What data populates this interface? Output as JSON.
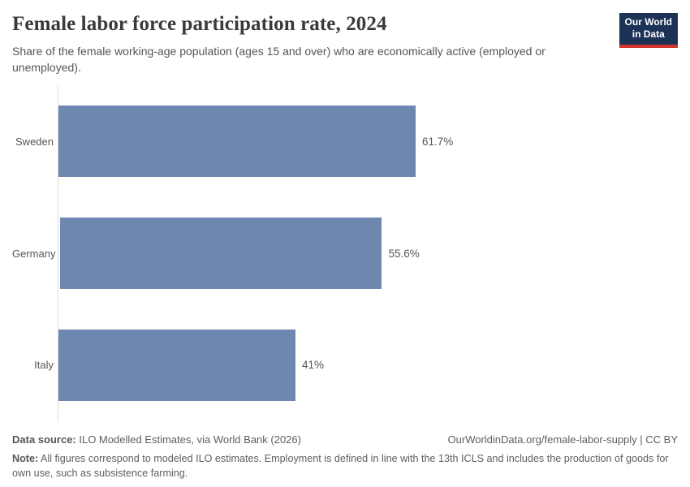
{
  "header": {
    "title": "Female labor force participation rate, 2024",
    "subtitle": "Share of the female working-age population (ages 15 and over) who are economically active (employed or unemployed).",
    "logo": {
      "line1": "Our World",
      "line2": "in Data",
      "bg_color": "#1c3256",
      "accent_color": "#d0342c"
    }
  },
  "chart_data": {
    "type": "bar",
    "orientation": "horizontal",
    "title": "Female labor force participation rate, 2024",
    "categories": [
      "Sweden",
      "Germany",
      "Italy"
    ],
    "values": [
      61.7,
      55.6,
      41
    ],
    "value_labels": [
      "61.7%",
      "55.6%",
      "41%"
    ],
    "unit": "%",
    "xlabel": "",
    "ylabel": "",
    "xlim": [
      0,
      62
    ],
    "grid": false,
    "legend": false,
    "bar_color": "#6e87af",
    "axis_color": "#dcdcdc"
  },
  "footer": {
    "datasource_label": "Data source:",
    "datasource_text": " ILO Modelled Estimates, via World Bank (2026)",
    "url_text": "OurWorldinData.org/female-labor-supply | CC BY",
    "note_label": "Note:",
    "note_text": " All figures correspond to modeled ILO estimates. Employment is defined in line with the 13th ICLS and includes the production of goods for own use, such as subsistence farming."
  }
}
